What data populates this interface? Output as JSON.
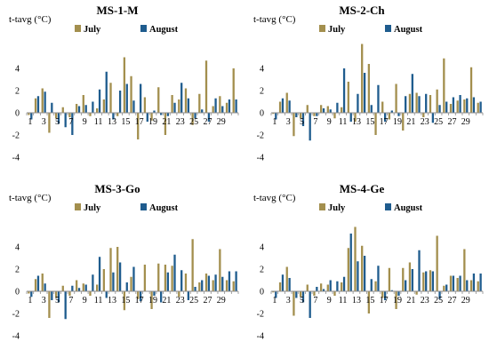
{
  "colors": {
    "july": "#a38f4e",
    "august": "#1f5c8e"
  },
  "chart_data": [
    {
      "type": "bar",
      "title": "MS-1-M",
      "ylabel": "t-tavg (°C)",
      "ylim": [
        -4,
        6
      ],
      "yticks": [
        -4,
        -2,
        0,
        2,
        4
      ],
      "x": [
        1,
        2,
        3,
        4,
        5,
        6,
        7,
        8,
        9,
        10,
        11,
        12,
        13,
        14,
        15,
        16,
        17,
        18,
        19,
        20,
        21,
        22,
        23,
        24,
        25,
        26,
        27,
        28,
        29,
        30,
        31
      ],
      "xtick_labels": [
        "1",
        "3",
        "5",
        "7",
        "9",
        "11",
        "13",
        "15",
        "17",
        "19",
        "21",
        "23",
        "25",
        "27",
        "29"
      ],
      "legend": "top",
      "series": [
        {
          "name": "July",
          "values": [
            -0.2,
            1.3,
            2.2,
            -1.8,
            -0.5,
            0.5,
            -0.4,
            0.8,
            1.6,
            -0.3,
            0.4,
            1.2,
            2.7,
            -0.3,
            5.0,
            3.3,
            -2.4,
            1.4,
            -0.7,
            2.3,
            -2.0,
            1.6,
            1.2,
            2.2,
            -1.1,
            1.7,
            4.7,
            0.6,
            1.5,
            0.9,
            4.0
          ]
        },
        {
          "name": "August",
          "values": [
            -0.6,
            1.5,
            1.9,
            0.9,
            -1.0,
            -1.3,
            -2.0,
            0.6,
            0.7,
            1.0,
            2.1,
            3.7,
            -0.6,
            2.0,
            2.6,
            1.1,
            2.6,
            -0.8,
            0.2,
            -0.2,
            -0.3,
            0.9,
            2.7,
            1.3,
            -0.5,
            0.3,
            -0.8,
            1.3,
            0.6,
            1.2,
            1.2
          ]
        }
      ]
    },
    {
      "type": "bar",
      "title": "MS-2-Ch",
      "ylabel": "t-tavg (°C)",
      "ylim": [
        -4,
        6
      ],
      "yticks": [
        -4,
        -2,
        0,
        2,
        4
      ],
      "x": [
        1,
        2,
        3,
        4,
        5,
        6,
        7,
        8,
        9,
        10,
        11,
        12,
        13,
        14,
        15,
        16,
        17,
        18,
        19,
        20,
        21,
        22,
        23,
        24,
        25,
        26,
        27,
        28,
        29,
        30,
        31
      ],
      "xtick_labels": [
        "1",
        "3",
        "5",
        "7",
        "9",
        "11",
        "13",
        "15",
        "17",
        "19",
        "21",
        "23",
        "25",
        "27",
        "29"
      ],
      "legend": "top",
      "series": [
        {
          "name": "July",
          "values": [
            -0.1,
            1.0,
            1.8,
            -2.1,
            -0.5,
            0.7,
            -0.3,
            0.7,
            0.6,
            -0.5,
            0.5,
            2.8,
            -0.8,
            6.2,
            4.4,
            -2.0,
            1.0,
            -0.6,
            2.6,
            -1.6,
            1.7,
            1.8,
            -0.4,
            1.6,
            2.1,
            4.9,
            0.8,
            1.1,
            1.2,
            4.1,
            0.9
          ]
        },
        {
          "name": "August",
          "values": [
            -0.6,
            1.3,
            1.1,
            -0.4,
            -1.2,
            -2.5,
            -0.3,
            0.4,
            0.3,
            0.9,
            4.0,
            -0.8,
            1.7,
            3.6,
            0.7,
            2.5,
            -0.8,
            0.2,
            -0.3,
            1.5,
            3.5,
            1.5,
            1.7,
            -0.9,
            0.7,
            1.0,
            1.4,
            1.6,
            1.3,
            1.4,
            1.0
          ]
        }
      ]
    },
    {
      "type": "bar",
      "title": "MS-3-Go",
      "ylabel": "t-tavg (°C)",
      "ylim": [
        -4,
        6
      ],
      "yticks": [
        -4,
        -2,
        0,
        2,
        4
      ],
      "x": [
        1,
        2,
        3,
        4,
        5,
        6,
        7,
        8,
        9,
        10,
        11,
        12,
        13,
        14,
        15,
        16,
        17,
        18,
        19,
        20,
        21,
        22,
        23,
        24,
        25,
        26,
        27,
        28,
        29,
        30,
        31
      ],
      "xtick_labels": [
        "1",
        "3",
        "5",
        "7",
        "9",
        "11",
        "13",
        "15",
        "17",
        "19",
        "21",
        "23",
        "25",
        "27",
        "29"
      ],
      "legend": "top",
      "series": [
        {
          "name": "July",
          "values": [
            -0.2,
            1.1,
            1.6,
            -2.4,
            -0.6,
            0.5,
            -0.4,
            1.0,
            0.7,
            -0.4,
            0.6,
            2.0,
            3.9,
            4.0,
            -1.7,
            1.3,
            -0.7,
            2.4,
            -1.6,
            2.5,
            2.4,
            2.3,
            -0.5,
            1.6,
            4.7,
            0.8,
            1.6,
            1.0,
            3.8,
            1.0,
            0.9
          ]
        },
        {
          "name": "August",
          "values": [
            -0.5,
            1.4,
            0.7,
            -0.8,
            -1.0,
            -2.5,
            0.5,
            0.3,
            0.6,
            1.5,
            3.1,
            -0.6,
            1.7,
            2.6,
            0.8,
            2.2,
            -0.9,
            0.0,
            -0.4,
            -1.0,
            1.7,
            3.3,
            1.9,
            -0.8,
            0.4,
            1.0,
            1.4,
            1.5,
            1.3,
            1.8,
            1.8
          ]
        }
      ]
    },
    {
      "type": "bar",
      "title": "MS-4-Ge",
      "ylabel": "t-tavg (°C)",
      "ylim": [
        -4,
        6
      ],
      "yticks": [
        -4,
        -2,
        0,
        2,
        4
      ],
      "x": [
        1,
        2,
        3,
        4,
        5,
        6,
        7,
        8,
        9,
        10,
        11,
        12,
        13,
        14,
        15,
        16,
        17,
        18,
        19,
        20,
        21,
        22,
        23,
        24,
        25,
        26,
        27,
        28,
        29,
        30,
        31
      ],
      "xtick_labels": [
        "1",
        "3",
        "5",
        "7",
        "9",
        "11",
        "13",
        "15",
        "17",
        "19",
        "21",
        "23",
        "25",
        "27",
        "29"
      ],
      "legend": "top",
      "series": [
        {
          "name": "July",
          "values": [
            -0.1,
            0.8,
            2.2,
            -2.2,
            -0.5,
            0.6,
            -0.4,
            0.7,
            0.6,
            -0.4,
            0.8,
            3.9,
            5.8,
            4.1,
            -2.0,
            0.9,
            -0.6,
            2.1,
            -1.6,
            2.1,
            2.6,
            -0.3,
            1.7,
            1.9,
            5.0,
            0.5,
            1.4,
            1.2,
            3.8,
            1.0,
            0.9
          ]
        },
        {
          "name": "August",
          "values": [
            -0.6,
            1.5,
            1.2,
            -0.6,
            -1.0,
            -2.4,
            0.4,
            0.2,
            1.0,
            0.9,
            1.3,
            5.2,
            2.7,
            3.2,
            1.1,
            2.3,
            -0.8,
            0.1,
            -0.4,
            1.0,
            2.0,
            3.7,
            1.8,
            1.8,
            -0.7,
            0.6,
            1.4,
            1.4,
            1.0,
            1.6,
            1.6
          ]
        }
      ]
    }
  ]
}
